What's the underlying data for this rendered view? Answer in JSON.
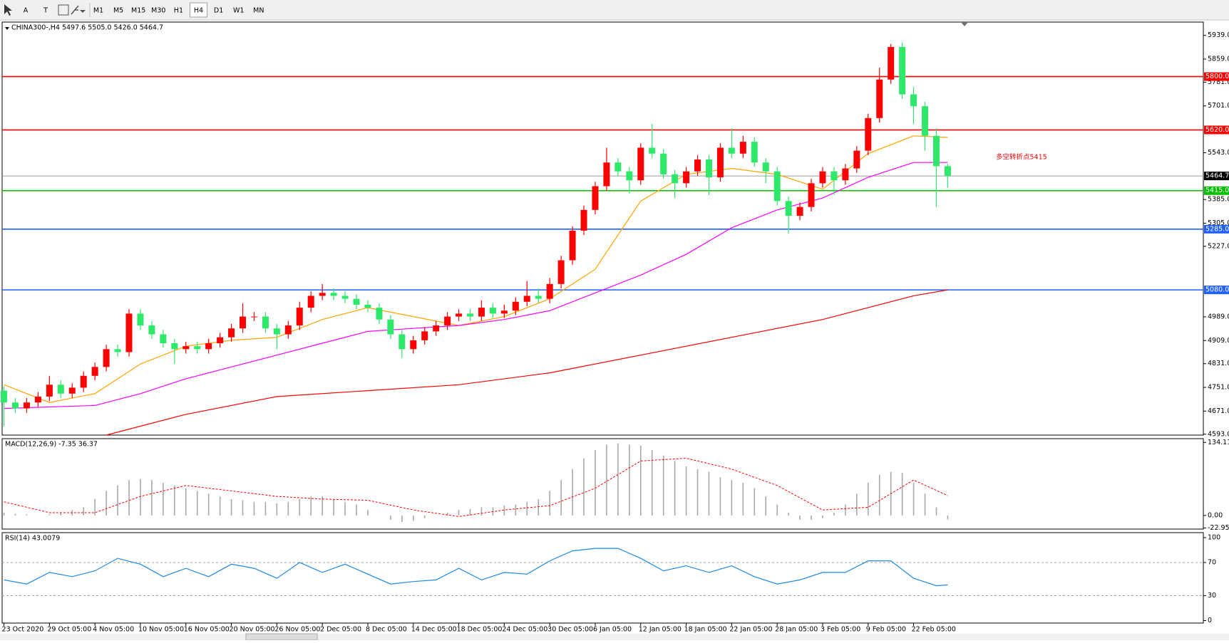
{
  "toolbar": {
    "text_tools": [
      "A",
      "T"
    ],
    "timeframes": [
      "M1",
      "M5",
      "M15",
      "M30",
      "H1",
      "H4",
      "D1",
      "W1",
      "MN"
    ],
    "active_timeframe": "H4"
  },
  "chart_data": [
    {
      "type": "candlestick",
      "title": "CHINA300-,H4  5497.6 5505.0 5426.0 5464.7",
      "open": [
        4740,
        4700,
        4680,
        4700,
        4720,
        4760,
        4730,
        4750,
        4790,
        4820,
        4880,
        4870,
        5000,
        4960,
        4930,
        4900,
        4880,
        4890,
        4880,
        4900,
        4920,
        4950,
        4990,
        4990,
        4950,
        4930,
        4960,
        5020,
        5060,
        5070,
        5060,
        5050,
        5030,
        5020,
        4980,
        4930,
        4880,
        4910,
        4940,
        4960,
        4990,
        5000,
        4990,
        5020,
        5000,
        5010,
        5040,
        5060,
        5050,
        5100,
        5180,
        5280,
        5350,
        5430,
        5510,
        5480,
        5450,
        5560,
        5540,
        5470,
        5440,
        5480,
        5520,
        5460,
        5560,
        5540,
        5580,
        5510,
        5480,
        5380,
        5330,
        5360,
        5440,
        5480,
        5450,
        5490,
        5550,
        5660,
        5790,
        5900,
        5740,
        5700,
        5600,
        5497.6
      ],
      "high": [
        4755,
        4715,
        4715,
        4735,
        4790,
        4775,
        4765,
        4805,
        4835,
        4895,
        4895,
        5015,
        5015,
        4975,
        4945,
        4915,
        4905,
        4905,
        4915,
        4935,
        4965,
        5035,
        5005,
        5005,
        4965,
        4975,
        5040,
        5075,
        5100,
        5085,
        5075,
        5065,
        5045,
        5035,
        4995,
        4945,
        4925,
        4955,
        4975,
        5005,
        5015,
        5015,
        5045,
        5035,
        5030,
        5055,
        5110,
        5085,
        5120,
        5195,
        5295,
        5365,
        5445,
        5560,
        5525,
        5495,
        5575,
        5640,
        5555,
        5485,
        5495,
        5535,
        5535,
        5575,
        5625,
        5600,
        5595,
        5525,
        5495,
        5395,
        5375,
        5455,
        5495,
        5495,
        5505,
        5565,
        5675,
        5830,
        5910,
        5915,
        5765,
        5715,
        5625,
        5505
      ],
      "low": [
        4620,
        4665,
        4665,
        4685,
        4705,
        4715,
        4715,
        4735,
        4775,
        4805,
        4855,
        4855,
        4945,
        4915,
        4885,
        4830,
        4865,
        4865,
        4865,
        4885,
        4905,
        4935,
        4975,
        4935,
        4880,
        4915,
        4945,
        5005,
        5045,
        5045,
        5035,
        5015,
        5005,
        4965,
        4915,
        4850,
        4865,
        4895,
        4925,
        4945,
        4975,
        4975,
        4975,
        4985,
        4985,
        4995,
        5025,
        5035,
        5035,
        5085,
        5165,
        5265,
        5335,
        5415,
        5465,
        5405,
        5435,
        5525,
        5455,
        5390,
        5425,
        5465,
        5400,
        5445,
        5525,
        5525,
        5495,
        5440,
        5365,
        5270,
        5315,
        5345,
        5425,
        5400,
        5435,
        5475,
        5535,
        5645,
        5775,
        5725,
        5640,
        5550,
        5360,
        5426
      ],
      "close": [
        4700,
        4680,
        4700,
        4720,
        4760,
        4730,
        4750,
        4790,
        4820,
        4880,
        4870,
        5000,
        4960,
        4930,
        4900,
        4880,
        4890,
        4880,
        4900,
        4920,
        4950,
        4990,
        4990,
        4950,
        4930,
        4960,
        5020,
        5060,
        5070,
        5060,
        5050,
        5030,
        5020,
        4980,
        4930,
        4880,
        4910,
        4940,
        4960,
        4990,
        5000,
        4990,
        5020,
        5000,
        5010,
        5040,
        5060,
        5050,
        5100,
        5180,
        5280,
        5350,
        5430,
        5510,
        5480,
        5450,
        5560,
        5540,
        5470,
        5440,
        5480,
        5520,
        5460,
        5560,
        5540,
        5580,
        5510,
        5480,
        5380,
        5330,
        5360,
        5440,
        5480,
        5450,
        5490,
        5550,
        5660,
        5790,
        5900,
        5740,
        5700,
        5600,
        5497.6,
        5464.7
      ],
      "up_color": "#ff0000",
      "down_color": "#2ee86a",
      "xlim": [
        -0.16,
        105.48
      ],
      "ylim": [
        4590,
        5984
      ],
      "yticks": [
        {
          "value": 5939,
          "label": "5939.0"
        },
        {
          "value": 5859,
          "label": "5859.0"
        },
        {
          "value": 5781,
          "label": "5781.0"
        },
        {
          "value": 5701,
          "label": "5701.0"
        },
        {
          "value": 5543,
          "label": "5543.0"
        },
        {
          "value": 5385,
          "label": "5385.0"
        },
        {
          "value": 5305,
          "label": "5305.0"
        },
        {
          "value": 5227,
          "label": "5227.0"
        },
        {
          "value": 4989,
          "label": "4989.0"
        },
        {
          "value": 4909,
          "label": "4909.0"
        },
        {
          "value": 4831,
          "label": "4831.0"
        },
        {
          "value": 4751,
          "label": "4751.0"
        },
        {
          "value": 4671,
          "label": "4671.0"
        },
        {
          "value": 4593,
          "label": "4593.0"
        }
      ],
      "xticks": [
        {
          "value": 0,
          "label": "23 Oct 2020"
        },
        {
          "value": 4,
          "label": "29 Oct 05:00"
        },
        {
          "value": 8,
          "label": "4 Nov 05:00"
        },
        {
          "value": 12,
          "label": "10 Nov 05:00"
        },
        {
          "value": 16,
          "label": "16 Nov 05:00"
        },
        {
          "value": 20,
          "label": "20 Nov 05:00"
        },
        {
          "value": 24,
          "label": "26 Nov 05:00"
        },
        {
          "value": 28,
          "label": "2 Dec 05:00"
        },
        {
          "value": 32,
          "label": "8 Dec 05:00"
        },
        {
          "value": 36,
          "label": "14 Dec 05:00"
        },
        {
          "value": 40,
          "label": "18 Dec 05:00"
        },
        {
          "value": 44,
          "label": "24 Dec 05:00"
        },
        {
          "value": 48,
          "label": "30 Dec 05:00"
        },
        {
          "value": 52,
          "label": "6 Jan 05:00"
        },
        {
          "value": 56,
          "label": "12 Jan 05:00"
        },
        {
          "value": 60,
          "label": "18 Jan 05:00"
        },
        {
          "value": 64,
          "label": "22 Jan 05:00"
        },
        {
          "value": 68,
          "label": "28 Jan 05:00"
        },
        {
          "value": 72,
          "label": "3 Feb 05:00"
        },
        {
          "value": 76,
          "label": "9 Feb 05:00"
        },
        {
          "value": 80,
          "label": "22 Feb 05:00"
        }
      ],
      "lines": [
        {
          "color": "#ffa500",
          "x": [
            0,
            4,
            8,
            12,
            16,
            20,
            24,
            28,
            32,
            36,
            40,
            44,
            48,
            52,
            56,
            60,
            64,
            68,
            72,
            76,
            80,
            83
          ],
          "values": [
            4760,
            4700,
            4730,
            4830,
            4890,
            4910,
            4920,
            4980,
            5020,
            4990,
            4960,
            4990,
            5050,
            5150,
            5380,
            5470,
            5490,
            5470,
            5420,
            5540,
            5600,
            5595
          ]
        },
        {
          "color": "#ff00ff",
          "x": [
            0,
            8,
            12,
            16,
            20,
            24,
            28,
            32,
            36,
            40,
            44,
            48,
            52,
            56,
            60,
            64,
            68,
            72,
            76,
            80,
            83
          ],
          "values": [
            4680,
            4690,
            4730,
            4780,
            4820,
            4860,
            4900,
            4940,
            4950,
            4960,
            4980,
            5010,
            5070,
            5130,
            5200,
            5290,
            5350,
            5390,
            5460,
            5510,
            5510
          ]
        },
        {
          "color": "#ff0000",
          "x": [
            9,
            16,
            24,
            32,
            40,
            48,
            56,
            64,
            72,
            80,
            83
          ],
          "values": [
            4590,
            4660,
            4720,
            4740,
            4760,
            4800,
            4860,
            4920,
            4980,
            5060,
            5080
          ]
        }
      ],
      "levels": [
        {
          "value": 5800,
          "label": "5800.0",
          "color": "#ff0000"
        },
        {
          "value": 5620,
          "label": "5620.0",
          "color": "#ff0000"
        },
        {
          "value": 5464.7,
          "label": "5464.7",
          "color": "#9a9a9a",
          "label_color": "#000000"
        },
        {
          "value": 5415,
          "label": "5415.0",
          "color": "#00c000"
        },
        {
          "value": 5285,
          "label": "5285.0",
          "color": "#2060ff"
        },
        {
          "value": 5080,
          "label": "5080.0",
          "color": "#2060ff"
        }
      ],
      "annotation": {
        "text": "多空转折点5415",
        "color": "#ff0000"
      }
    },
    {
      "type": "macd",
      "title": "MACD(12,26,9) -7.35 36.37",
      "values": [
        5,
        3,
        2,
        0,
        2,
        5,
        10,
        15,
        30,
        45,
        55,
        65,
        67,
        65,
        60,
        55,
        50,
        45,
        40,
        35,
        30,
        28,
        25,
        25,
        22,
        25,
        30,
        35,
        35,
        30,
        25,
        20,
        10,
        0,
        -8,
        -12,
        -10,
        -5,
        0,
        5,
        10,
        12,
        15,
        15,
        18,
        20,
        25,
        30,
        45,
        65,
        85,
        105,
        120,
        130,
        132,
        130,
        128,
        120,
        110,
        100,
        90,
        85,
        80,
        70,
        65,
        60,
        50,
        35,
        20,
        5,
        -8,
        -8,
        -5,
        5,
        20,
        40,
        60,
        75,
        80,
        78,
        60,
        40,
        15,
        -7.35
      ],
      "color": "#a8a8a8",
      "signal": {
        "color": "#ff0000",
        "x": [
          0,
          4,
          8,
          12,
          16,
          20,
          24,
          28,
          32,
          36,
          40,
          44,
          48,
          52,
          56,
          60,
          64,
          68,
          72,
          76,
          80,
          83
        ],
        "values": [
          25,
          5,
          5,
          35,
          55,
          45,
          35,
          30,
          28,
          10,
          -2,
          10,
          18,
          50,
          100,
          105,
          85,
          55,
          10,
          15,
          65,
          36.37
        ]
      },
      "xlim": [
        -0.16,
        105.48
      ],
      "ylim": [
        -25,
        141
      ],
      "yticks": [
        134.11,
        {
          "value": 0,
          "label": "0.00"
        },
        -22.95
      ]
    },
    {
      "type": "line",
      "title": "RSI(14) 43.0079",
      "x": [
        0,
        2,
        4,
        6,
        8,
        10,
        12,
        14,
        16,
        18,
        20,
        22,
        24,
        26,
        28,
        30,
        32,
        34,
        36,
        38,
        40,
        42,
        44,
        46,
        48,
        50,
        52,
        54,
        56,
        58,
        60,
        62,
        64,
        66,
        68,
        70,
        72,
        74,
        76,
        78,
        80,
        82,
        83
      ],
      "values": [
        49,
        44,
        58,
        53,
        60,
        75,
        68,
        53,
        63,
        53,
        68,
        63,
        51,
        70,
        58,
        68,
        56,
        44,
        47,
        49,
        63,
        49,
        58,
        56,
        72,
        84,
        87,
        87,
        75,
        60,
        66,
        58,
        66,
        53,
        44,
        49,
        58,
        58,
        72,
        72,
        51,
        42,
        43.0079
      ],
      "color": "#1e88e5",
      "xlim": [
        -0.16,
        105.48
      ],
      "ylim": [
        -3,
        106
      ],
      "yticks": [
        100,
        70,
        30,
        0
      ],
      "grid_levels": [
        70,
        30
      ]
    }
  ]
}
